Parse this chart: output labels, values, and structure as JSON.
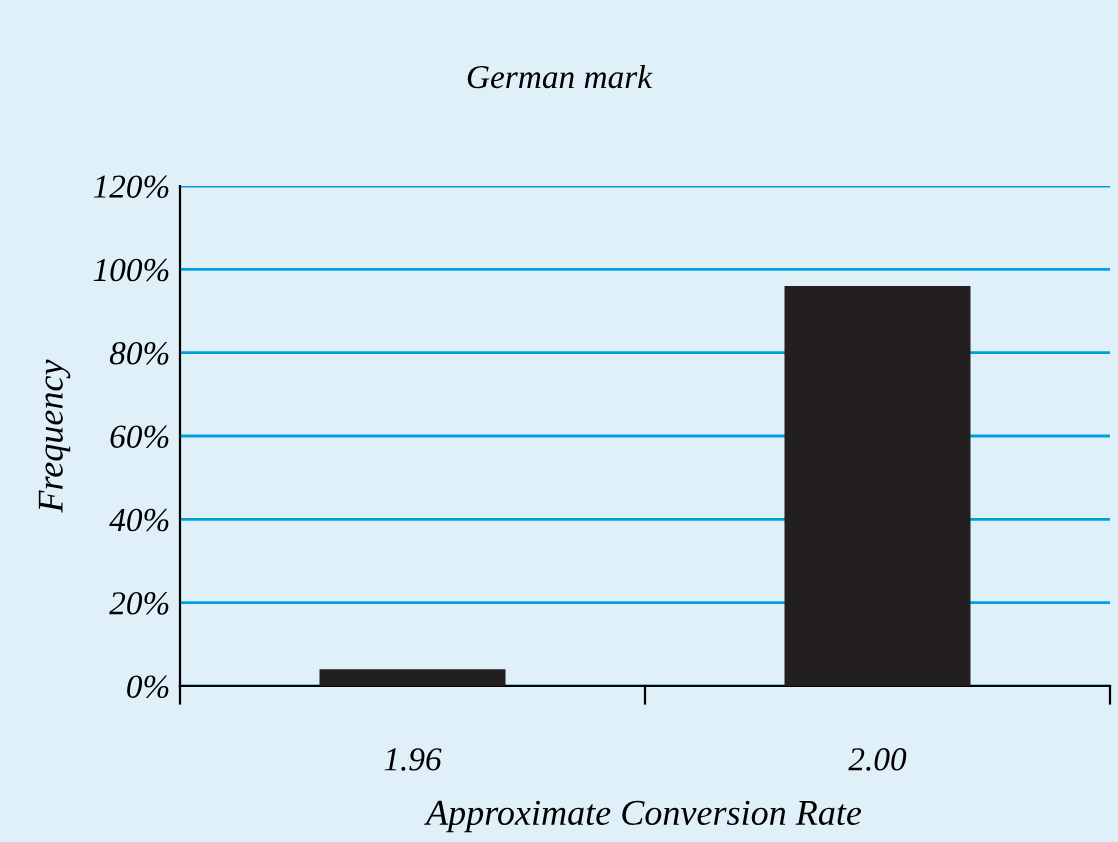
{
  "chart_data": {
    "type": "bar",
    "title": "German mark",
    "xlabel": "Approximate Conversion Rate",
    "ylabel": "Frequency",
    "categories": [
      "1.96",
      "2.00"
    ],
    "values": [
      4,
      96
    ],
    "color": "#231f20",
    "ylim": [
      0,
      120
    ],
    "yticks": [
      {
        "value": 0,
        "label": "0%"
      },
      {
        "value": 20,
        "label": "20%"
      },
      {
        "value": 40,
        "label": "40%"
      },
      {
        "value": 60,
        "label": "60%"
      },
      {
        "value": 80,
        "label": "80%"
      },
      {
        "value": 100,
        "label": "100%"
      },
      {
        "value": 120,
        "label": "120%"
      }
    ],
    "grid": "y"
  }
}
